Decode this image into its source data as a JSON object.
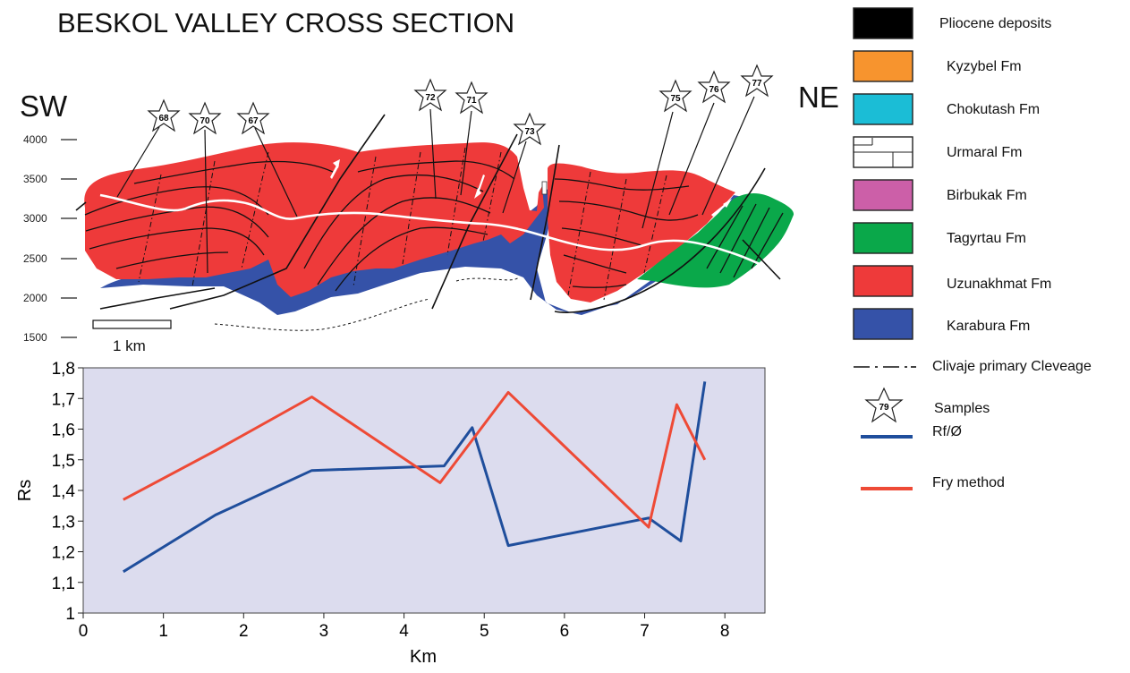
{
  "section": {
    "title": "BESKOL VALLEY CROSS SECTION",
    "left_direction": "SW",
    "right_direction": "NE",
    "elevation_ticks": [
      "4000",
      "3500",
      "3000",
      "2500",
      "2000",
      "1500"
    ],
    "scale_label": "1 km",
    "samples": [
      "68",
      "70",
      "67",
      "72",
      "71",
      "73",
      "75",
      "76",
      "77"
    ]
  },
  "legend": {
    "items": [
      {
        "label": "Pliocene deposits",
        "color": "#000000"
      },
      {
        "label": "Kyzybel Fm",
        "color": "#f7942e"
      },
      {
        "label": "Chokutash Fm",
        "color": "#1bbdd6"
      },
      {
        "label": "Urmaral Fm",
        "color": "#ffffff"
      },
      {
        "label": "Birbukak Fm",
        "color": "#cc5fa8"
      },
      {
        "label": "Tagyrtau Fm",
        "color": "#0aa84a"
      },
      {
        "label": "Uzunakhmat Fm",
        "color": "#ee3a3a"
      },
      {
        "label": "Karabura Fm",
        "color": "#3552a8"
      }
    ],
    "cleavage_label": "Clivaje primary Cleveage",
    "samples_label": "Samples",
    "samples_icon_number": "79",
    "rf_label": "Rf/Ø",
    "fry_label": "Fry method"
  },
  "chart_data": {
    "type": "line",
    "xlabel": "Km",
    "ylabel": "Rs",
    "xlim": [
      0,
      8.5
    ],
    "ylim": [
      1.0,
      1.8
    ],
    "x_ticks": [
      "0",
      "1",
      "2",
      "3",
      "4",
      "5",
      "6",
      "7",
      "8"
    ],
    "y_ticks": [
      "1",
      "1,1",
      "1,2",
      "1,3",
      "1,4",
      "1,5",
      "1,6",
      "1,7",
      "1,8"
    ],
    "background": "#dcdcee",
    "series": [
      {
        "name": "Rf/Ø",
        "color": "#1f4e9c",
        "x": [
          0.5,
          1.65,
          2.85,
          4.5,
          4.85,
          5.3,
          7.05,
          7.45,
          7.75
        ],
        "y": [
          1.135,
          1.32,
          1.465,
          1.48,
          1.605,
          1.22,
          1.31,
          1.235,
          1.755
        ]
      },
      {
        "name": "Fry method",
        "color": "#ee4a36",
        "x": [
          0.5,
          1.65,
          2.85,
          4.45,
          5.3,
          7.05,
          7.4,
          7.75
        ],
        "y": [
          1.37,
          1.53,
          1.705,
          1.425,
          1.72,
          1.28,
          1.68,
          1.5
        ]
      }
    ]
  }
}
